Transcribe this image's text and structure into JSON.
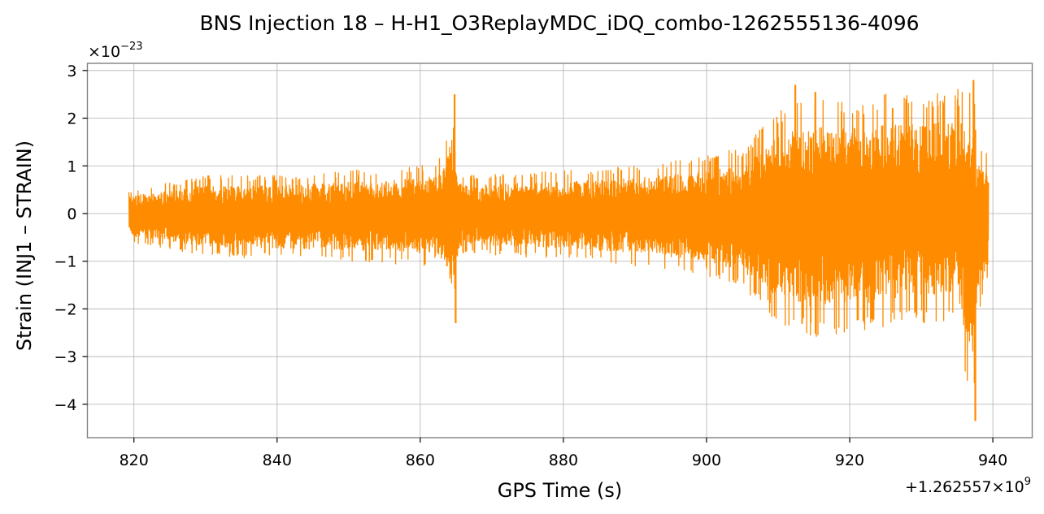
{
  "chart_data": {
    "type": "line",
    "title": "BNS Injection 18 – H-H1_O3ReplayMDC_iDQ_combo-1262555136-4096",
    "xlabel": "GPS Time (s)",
    "ylabel": "Strain (INJ1 – STRAIN)",
    "x_offset_label": "+1.262557×10",
    "x_offset_exponent": "9",
    "y_scale_label": "×10",
    "y_scale_exponent": "−23",
    "xlim": [
      813.5,
      945.5
    ],
    "ylim": [
      -4.7,
      3.15
    ],
    "x_ticks": [
      820,
      840,
      860,
      880,
      900,
      920,
      940
    ],
    "x_tick_labels": [
      "820",
      "840",
      "860",
      "880",
      "900",
      "920",
      "940"
    ],
    "y_ticks": [
      -4,
      -3,
      -2,
      -1,
      0,
      1,
      2,
      3
    ],
    "y_tick_labels": [
      "−4",
      "−3",
      "−2",
      "−1",
      "0",
      "1",
      "2",
      "3"
    ],
    "grid": true,
    "series": [
      {
        "color": "#ff8c00",
        "x_range": [
          819.3,
          939.4
        ],
        "envelope": {
          "x": [
            819.3,
            830,
            840,
            850,
            860,
            863,
            864.8,
            865.2,
            866,
            880,
            890,
            900,
            905,
            910,
            915,
            920,
            925,
            930,
            935,
            937.3,
            937.7,
            939.4
          ],
          "upper": [
            0.5,
            0.8,
            0.8,
            0.9,
            1.0,
            1.2,
            2.5,
            0.9,
            0.8,
            0.9,
            1.0,
            1.2,
            1.4,
            2.2,
            2.5,
            2.4,
            2.5,
            2.5,
            2.6,
            2.8,
            1.6,
            1.3
          ],
          "lower": [
            -0.6,
            -0.9,
            -0.95,
            -1.0,
            -1.1,
            -1.3,
            -2.3,
            -1.0,
            -0.85,
            -0.95,
            -1.1,
            -1.3,
            -1.6,
            -2.3,
            -2.6,
            -2.6,
            -2.4,
            -2.3,
            -2.4,
            -4.35,
            -2.4,
            -1.4
          ]
        }
      }
    ]
  }
}
